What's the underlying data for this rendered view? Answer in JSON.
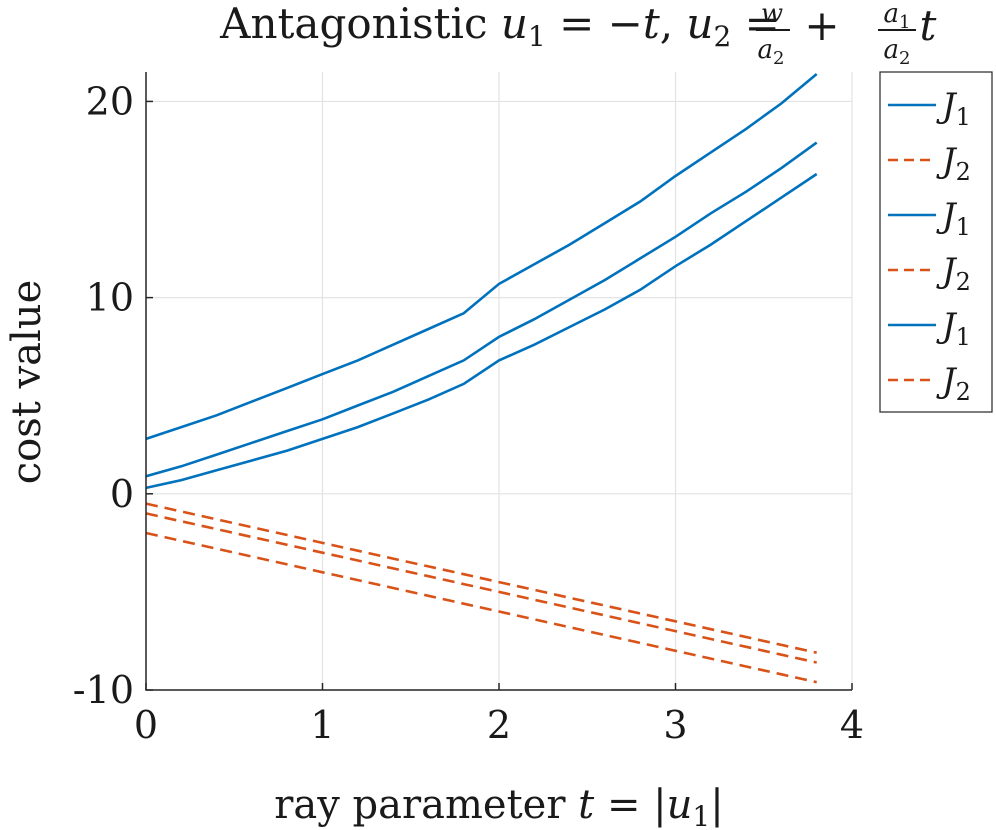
{
  "chart_data": {
    "type": "line",
    "title": "Antagonistic u₁ = −t, u₂ = w/a₂ + (a₁/a₂)t",
    "title_parts": {
      "prefix": "Antagonistic ",
      "u1": "u",
      "u1_sub": "1",
      "eq1": " = −",
      "t": "t",
      "comma": ", ",
      "u2": "u",
      "u2_sub": "2",
      "eq2": " = ",
      "frac1_num": "w",
      "frac1_den": "a",
      "frac1_den_sub": "2",
      "plus": " + ",
      "frac2_num": "a",
      "frac2_num_sub": "1",
      "frac2_den": "a",
      "frac2_den_sub": "2",
      "t2": "t"
    },
    "xlabel": "ray parameter t = |u₁|",
    "xlabel_parts": {
      "prefix": "ray parameter ",
      "t": "t",
      "eq": " = |",
      "u": "u",
      "sub": "1",
      "close": "|"
    },
    "ylabel": "cost value",
    "xlim": [
      0,
      4
    ],
    "ylim": [
      -10,
      21.5
    ],
    "xticks": [
      "0",
      "1",
      "2",
      "3",
      "4"
    ],
    "yticks": [
      "-10",
      "0",
      "10",
      "20"
    ],
    "grid": true,
    "legend_position": "outside-top-right",
    "colors": {
      "J1": "#0072BD",
      "J2": "#D95319"
    },
    "x": [
      0,
      0.2,
      0.4,
      0.6,
      0.8,
      1.0,
      1.2,
      1.4,
      1.6,
      1.8,
      2.0,
      2.2,
      2.4,
      2.6,
      2.8,
      3.0,
      3.2,
      3.4,
      3.6,
      3.8
    ],
    "series": [
      {
        "name": "J",
        "sub": "1",
        "style": "solid",
        "values": [
          2.8,
          3.4,
          4.0,
          4.7,
          5.4,
          6.1,
          6.8,
          7.6,
          8.4,
          9.2,
          10.7,
          11.7,
          12.7,
          13.8,
          14.9,
          16.2,
          17.4,
          18.6,
          19.9,
          21.4
        ]
      },
      {
        "name": "J",
        "sub": "2",
        "style": "dashed",
        "values": [
          -2.0,
          -2.4,
          -2.8,
          -3.2,
          -3.6,
          -4.0,
          -4.4,
          -4.8,
          -5.2,
          -5.6,
          -6.0,
          -6.4,
          -6.8,
          -7.2,
          -7.6,
          -8.0,
          -8.4,
          -8.8,
          -9.2,
          -9.6
        ]
      },
      {
        "name": "J",
        "sub": "1",
        "style": "solid",
        "values": [
          0.9,
          1.4,
          2.0,
          2.6,
          3.2,
          3.8,
          4.5,
          5.2,
          6.0,
          6.8,
          8.0,
          8.9,
          9.9,
          10.9,
          12.0,
          13.1,
          14.3,
          15.4,
          16.6,
          17.9
        ]
      },
      {
        "name": "J",
        "sub": "2",
        "style": "dashed",
        "values": [
          -1.0,
          -1.4,
          -1.8,
          -2.2,
          -2.6,
          -3.0,
          -3.4,
          -3.8,
          -4.2,
          -4.6,
          -5.0,
          -5.4,
          -5.8,
          -6.2,
          -6.6,
          -7.0,
          -7.4,
          -7.8,
          -8.2,
          -8.6
        ]
      },
      {
        "name": "J",
        "sub": "1",
        "style": "solid",
        "values": [
          0.3,
          0.7,
          1.2,
          1.7,
          2.2,
          2.8,
          3.4,
          4.1,
          4.8,
          5.6,
          6.8,
          7.6,
          8.5,
          9.4,
          10.4,
          11.6,
          12.7,
          13.9,
          15.1,
          16.3
        ]
      },
      {
        "name": "J",
        "sub": "2",
        "style": "dashed",
        "values": [
          -0.5,
          -0.9,
          -1.3,
          -1.7,
          -2.1,
          -2.5,
          -2.9,
          -3.3,
          -3.7,
          -4.1,
          -4.5,
          -4.9,
          -5.3,
          -5.7,
          -6.1,
          -6.5,
          -6.9,
          -7.3,
          -7.7,
          -8.1
        ]
      }
    ]
  }
}
